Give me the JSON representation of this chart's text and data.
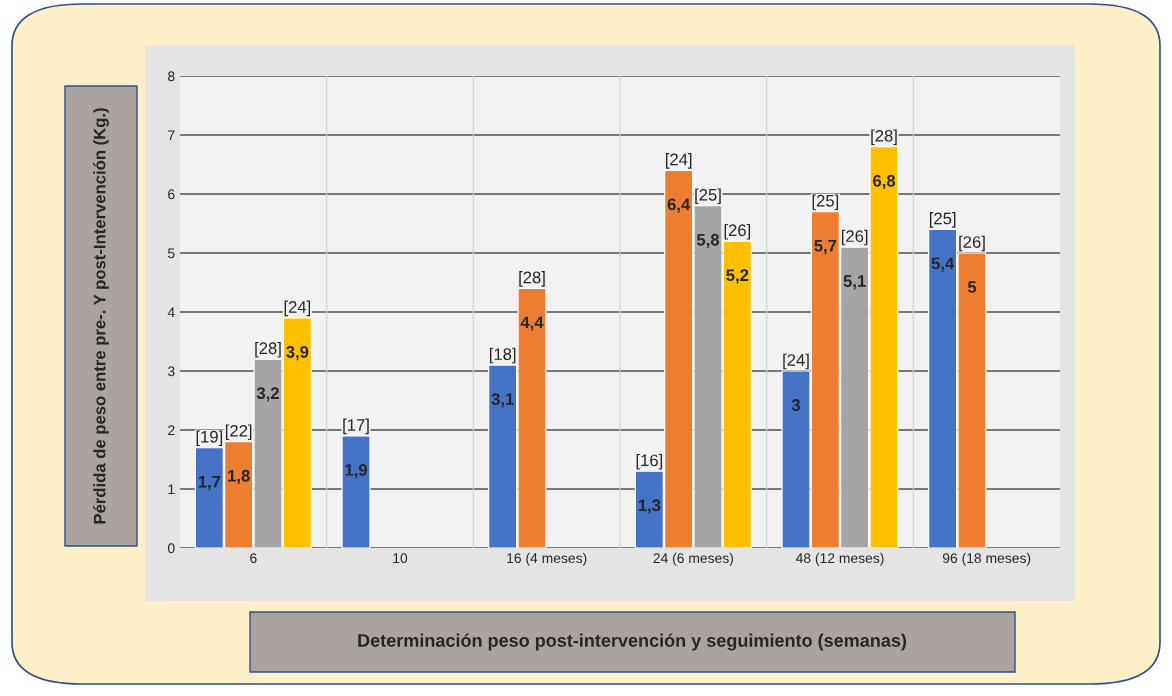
{
  "chart_data": {
    "type": "bar",
    "ylabel": "Pérdida de peso entre pre-. Y post-Intervención (Kg.)",
    "xlabel": "Determinación peso post-intervención y seguimiento (semanas)",
    "categories": [
      "6",
      "10",
      "16 (4 meses)",
      "24 (6 meses)",
      "48 (12 meses)",
      "96 (18 meses)"
    ],
    "series": [
      {
        "color": "#4472c4",
        "values": [
          1.7,
          1.9,
          3.1,
          1.3,
          3,
          5.4
        ],
        "value_labels": [
          "1,7",
          "1,9",
          "3,1",
          "1,3",
          "3",
          "5,4"
        ]
      },
      {
        "color": "#ed7d31",
        "values": [
          1.8,
          null,
          4.4,
          6.4,
          5.7,
          5
        ],
        "value_labels": [
          "1,8",
          null,
          "4,4",
          "6,4",
          "5,7",
          "5"
        ]
      },
      {
        "color": "#a5a5a5",
        "values": [
          3.2,
          null,
          null,
          5.8,
          5.1,
          null
        ],
        "value_labels": [
          "3,2",
          null,
          null,
          "5,8",
          "5,1",
          null
        ]
      },
      {
        "color": "#ffc000",
        "values": [
          3.9,
          null,
          null,
          5.2,
          6.8,
          null
        ],
        "value_labels": [
          "3,9",
          null,
          null,
          "5,2",
          "6,8",
          null
        ]
      }
    ],
    "annotations": [
      "[19]",
      "[22]",
      "[28]",
      "[24]",
      "[17]",
      "[18]",
      "[28]",
      "[16]",
      "[24]",
      "[25]",
      "[26]",
      "[24]",
      "[25]",
      "[26]",
      "[28]",
      "[25]",
      "[26]"
    ],
    "ylim": [
      0,
      8
    ],
    "yticks": [
      0,
      1,
      2,
      3,
      4,
      5,
      6,
      7,
      8
    ],
    "grid": "y",
    "legend": false
  }
}
